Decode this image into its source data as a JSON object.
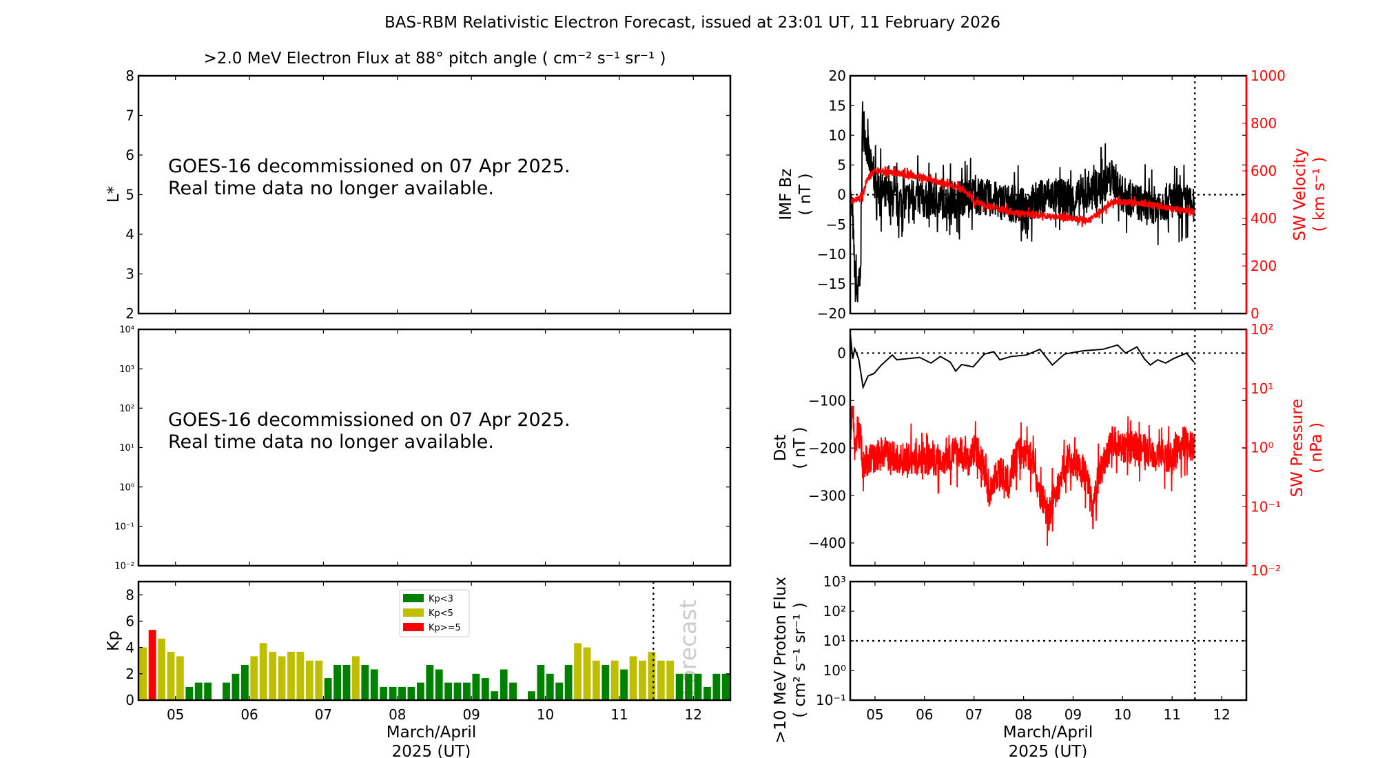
{
  "title": "BAS-RBM Relativistic Electron Forecast, issued at 23:01 UT, 11 February 2026",
  "x_axis": {
    "range": [
      4.5,
      12.5
    ],
    "ticks": [
      5,
      6,
      7,
      8,
      9,
      10,
      11,
      12
    ],
    "tick_labels": [
      "05",
      "06",
      "07",
      "08",
      "09",
      "10",
      "11",
      "12"
    ],
    "label_line1": "March/April",
    "label_line2": "2025 (UT)",
    "forecast_start": 11.46
  },
  "electron_panel": {
    "title": ">2.0 MeV Electron Flux at 88° pitch angle ( cm⁻² s⁻¹ sr⁻¹ )",
    "notice_line1": "GOES-16 decommissioned on 07 Apr 2025.",
    "notice_line2": "Real time data no longer available."
  },
  "chart_data": [
    {
      "type": "heatmap",
      "ylabel": "L*",
      "ylim": [
        2,
        8
      ],
      "yticks": [
        2,
        3,
        4,
        5,
        6,
        7,
        8
      ],
      "ytick_labels": [
        "2",
        "3",
        "4",
        "5",
        "6",
        "7",
        "8"
      ]
    },
    {
      "type": "line",
      "ylabel": "",
      "yscale": "log",
      "ylim": [
        0.01,
        10000
      ],
      "ytick_labels": [
        "10⁻²",
        "10⁻¹",
        "10⁰",
        "10¹",
        "10²",
        "10³",
        "10⁴"
      ]
    },
    {
      "type": "bar",
      "ylabel": "Kp",
      "ylim": [
        0,
        9
      ],
      "yticks": [
        0,
        2,
        4,
        6,
        8
      ],
      "ytick_labels": [
        "0",
        "2",
        "4",
        "6",
        "8"
      ],
      "forecast_label": "Forecast",
      "legend": [
        "Kp<3",
        "Kp<5",
        "Kp>=5"
      ],
      "legend_position": "top-center",
      "colors": {
        "low": "#008000",
        "mid": "#bfbf00",
        "high": "#ff0000"
      },
      "x_start": 4.5,
      "bin_days": 0.125,
      "values": [
        4.0,
        5.33,
        4.67,
        3.67,
        3.33,
        1.0,
        1.33,
        1.33,
        0,
        1.33,
        2.0,
        2.67,
        3.33,
        4.33,
        3.67,
        3.33,
        3.67,
        3.67,
        3.0,
        3.0,
        1.67,
        2.67,
        2.67,
        3.33,
        2.67,
        2.33,
        1.0,
        1.0,
        1.0,
        1.0,
        1.33,
        2.67,
        2.33,
        1.33,
        1.33,
        1.33,
        2.0,
        1.67,
        0.67,
        2.33,
        1.33,
        0,
        0.67,
        2.67,
        2.0,
        1.33,
        2.67,
        4.33,
        4.0,
        3.0,
        2.67,
        3.0,
        2.33,
        3.33,
        3.0,
        3.67,
        3.0,
        3.0,
        2.0,
        2.0,
        2.0,
        1.0,
        2.0,
        2.0
      ]
    },
    {
      "type": "line",
      "ylabel_line1": "IMF Bz",
      "ylabel_line2": "( nT )",
      "ylim": [
        -20,
        20
      ],
      "yticks": [
        -20,
        -15,
        -10,
        -5,
        0,
        5,
        10,
        15,
        20
      ],
      "ytick_labels": [
        "−20",
        "−15",
        "−10",
        "−5",
        "0",
        "5",
        "10",
        "15",
        "20"
      ],
      "y2label_line1": "SW Velocity",
      "y2label_line2": "( km s⁻¹ )",
      "y2lim": [
        0,
        1000
      ],
      "y2ticks": [
        0,
        200,
        400,
        600,
        800,
        1000
      ],
      "y2tick_labels": [
        "0",
        "200",
        "400",
        "600",
        "800",
        "1000"
      ],
      "series": [
        {
          "name": "IMF Bz",
          "color": "#000000",
          "points": [
            [
              4.5,
              0
            ],
            [
              4.55,
              -4
            ],
            [
              4.6,
              -15
            ],
            [
              4.65,
              -17
            ],
            [
              4.7,
              -14
            ],
            [
              4.73,
              0
            ],
            [
              4.75,
              14
            ],
            [
              4.8,
              10
            ],
            [
              4.9,
              5
            ],
            [
              5.0,
              2
            ],
            [
              5.2,
              0
            ],
            [
              5.4,
              -1
            ],
            [
              5.6,
              -1
            ],
            [
              5.8,
              0
            ],
            [
              6.0,
              -1
            ],
            [
              6.5,
              -1
            ],
            [
              7.0,
              0
            ],
            [
              7.5,
              -1
            ],
            [
              8.0,
              -2
            ],
            [
              8.5,
              0
            ],
            [
              9.0,
              -1
            ],
            [
              9.5,
              1
            ],
            [
              9.8,
              3
            ],
            [
              10.0,
              0
            ],
            [
              10.5,
              -2
            ],
            [
              11.0,
              -1
            ],
            [
              11.45,
              -2
            ]
          ]
        },
        {
          "name": "SW Velocity",
          "color": "#ff0000",
          "axis": "right",
          "points": [
            [
              4.5,
              470
            ],
            [
              4.6,
              480
            ],
            [
              4.75,
              500
            ],
            [
              4.85,
              570
            ],
            [
              5.0,
              600
            ],
            [
              5.5,
              590
            ],
            [
              6.0,
              570
            ],
            [
              6.5,
              540
            ],
            [
              6.8,
              520
            ],
            [
              7.0,
              470
            ],
            [
              7.5,
              440
            ],
            [
              8.0,
              420
            ],
            [
              8.5,
              410
            ],
            [
              9.0,
              400
            ],
            [
              9.3,
              390
            ],
            [
              9.5,
              420
            ],
            [
              9.8,
              470
            ],
            [
              10.0,
              470
            ],
            [
              10.5,
              460
            ],
            [
              11.0,
              440
            ],
            [
              11.45,
              430
            ]
          ]
        }
      ]
    },
    {
      "type": "line",
      "ylabel_line1": "Dst",
      "ylabel_line2": "( nT )",
      "ylim": [
        -448,
        50
      ],
      "yticks": [
        -400,
        -300,
        -200,
        -100,
        0
      ],
      "ytick_labels": [
        "−400",
        "−300",
        "−200",
        "−100",
        "0"
      ],
      "y2label_line1": "SW Pressure",
      "y2label_line2": "( nPa )",
      "y2scale": "log",
      "y2lim": [
        0.01,
        100
      ],
      "y2tick_labels": [
        "10⁻²",
        "10⁻¹",
        "10⁰",
        "10¹",
        "10²"
      ],
      "series": [
        {
          "name": "Dst",
          "color": "#000000",
          "points": [
            [
              4.5,
              42
            ],
            [
              4.55,
              -12
            ],
            [
              4.59,
              9
            ],
            [
              4.67,
              -12
            ],
            [
              4.76,
              -72
            ],
            [
              4.86,
              -48
            ],
            [
              4.98,
              -43
            ],
            [
              5.12,
              -26
            ],
            [
              5.35,
              -4
            ],
            [
              5.44,
              -14
            ],
            [
              5.9,
              -9
            ],
            [
              6.13,
              -21
            ],
            [
              6.32,
              -7
            ],
            [
              6.52,
              -19
            ],
            [
              6.63,
              -38
            ],
            [
              6.75,
              -24
            ],
            [
              6.98,
              -29
            ],
            [
              7.21,
              -2
            ],
            [
              7.4,
              3
            ],
            [
              7.52,
              -14
            ],
            [
              7.75,
              -7
            ],
            [
              8.06,
              -4
            ],
            [
              8.33,
              8
            ],
            [
              8.58,
              -25
            ],
            [
              8.83,
              -2
            ],
            [
              9.21,
              5
            ],
            [
              9.6,
              8
            ],
            [
              9.9,
              17
            ],
            [
              10.06,
              0
            ],
            [
              10.29,
              13
            ],
            [
              10.44,
              -12
            ],
            [
              10.56,
              -25
            ],
            [
              10.71,
              -14
            ],
            [
              10.87,
              -21
            ],
            [
              11.02,
              -12
            ],
            [
              11.29,
              0
            ],
            [
              11.44,
              -19
            ]
          ]
        },
        {
          "name": "SW Pressure",
          "color": "#ff0000",
          "axis": "right",
          "points": [
            [
              4.5,
              2.0
            ],
            [
              4.55,
              4.0
            ],
            [
              4.6,
              1.0
            ],
            [
              4.65,
              2.0
            ],
            [
              4.7,
              1.6
            ],
            [
              4.75,
              0.5
            ],
            [
              4.9,
              0.63
            ],
            [
              5.2,
              0.8
            ],
            [
              5.5,
              0.63
            ],
            [
              6.0,
              0.63
            ],
            [
              6.4,
              0.63
            ],
            [
              6.7,
              0.9
            ],
            [
              6.9,
              0.5
            ],
            [
              7.0,
              1.0
            ],
            [
              7.3,
              0.16
            ],
            [
              7.5,
              0.4
            ],
            [
              7.7,
              0.25
            ],
            [
              7.9,
              0.8
            ],
            [
              8.1,
              0.8
            ],
            [
              8.3,
              0.2
            ],
            [
              8.5,
              0.06
            ],
            [
              8.7,
              0.2
            ],
            [
              8.9,
              0.63
            ],
            [
              9.2,
              0.4
            ],
            [
              9.4,
              0.05
            ],
            [
              9.6,
              0.5
            ],
            [
              9.8,
              1.26
            ],
            [
              10.0,
              1.0
            ],
            [
              10.3,
              1.0
            ],
            [
              10.6,
              0.8
            ],
            [
              10.8,
              0.8
            ],
            [
              11.0,
              0.63
            ],
            [
              11.2,
              1.26
            ],
            [
              11.45,
              1.0
            ]
          ]
        }
      ]
    },
    {
      "type": "line",
      "ylabel_line1": ">10 MeV Proton Flux",
      "ylabel_line2": "( cm² s⁻¹ sr⁻¹ )",
      "yscale": "log",
      "ylim": [
        0.1,
        1000
      ],
      "ytick_labels": [
        "10⁻¹",
        "10⁰",
        "10¹",
        "10²",
        "10³"
      ],
      "threshold": 10
    }
  ]
}
